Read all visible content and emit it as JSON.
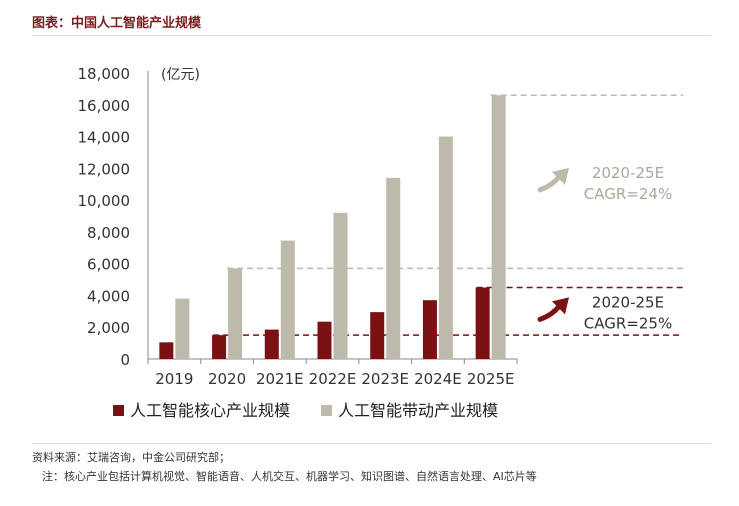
{
  "header": {
    "title": "图表：中国人工智能产业规模"
  },
  "footer": {
    "source": "资料来源：艾瑞咨询，中金公司研究部；",
    "note": "注：核心产业包括计算机视觉、智能语音、人机交互、机器学习、知识图谱、自然语言处理、AI芯片等"
  },
  "chart_data": {
    "type": "bar",
    "unit_label": "(亿元)",
    "categories": [
      "2019",
      "2020",
      "2021E",
      "2022E",
      "2023E",
      "2024E",
      "2025E"
    ],
    "series": [
      {
        "name": "人工智能核心产业规模",
        "color": "#7b1113",
        "values": [
          1050,
          1500,
          1850,
          2350,
          2950,
          3700,
          4500
        ]
      },
      {
        "name": "人工智能带动产业规模",
        "color": "#bdb9ab",
        "values": [
          3800,
          5700,
          7450,
          9200,
          11400,
          14000,
          16600
        ]
      }
    ],
    "ylim": [
      0,
      18000
    ],
    "yticks": [
      0,
      2000,
      4000,
      6000,
      8000,
      10000,
      12000,
      14000,
      16000,
      18000
    ],
    "ytick_labels": [
      "0",
      "2,000",
      "4,000",
      "6,000",
      "8,000",
      "10,000",
      "12,000",
      "14,000",
      "16,000",
      "18,000"
    ],
    "grid": false,
    "legend_position": "bottom",
    "annotations": [
      {
        "series": 1,
        "from_category": 1,
        "to_category": 6,
        "line1": "2020-25E",
        "line2": "CAGR=24%",
        "color": "#bdb9ab",
        "text_color": "#aaa79c"
      },
      {
        "series": 0,
        "from_category": 1,
        "to_category": 6,
        "line1": "2020-25E",
        "line2": "CAGR=25%",
        "color": "#7b1113",
        "text_color": "#333333"
      }
    ]
  }
}
